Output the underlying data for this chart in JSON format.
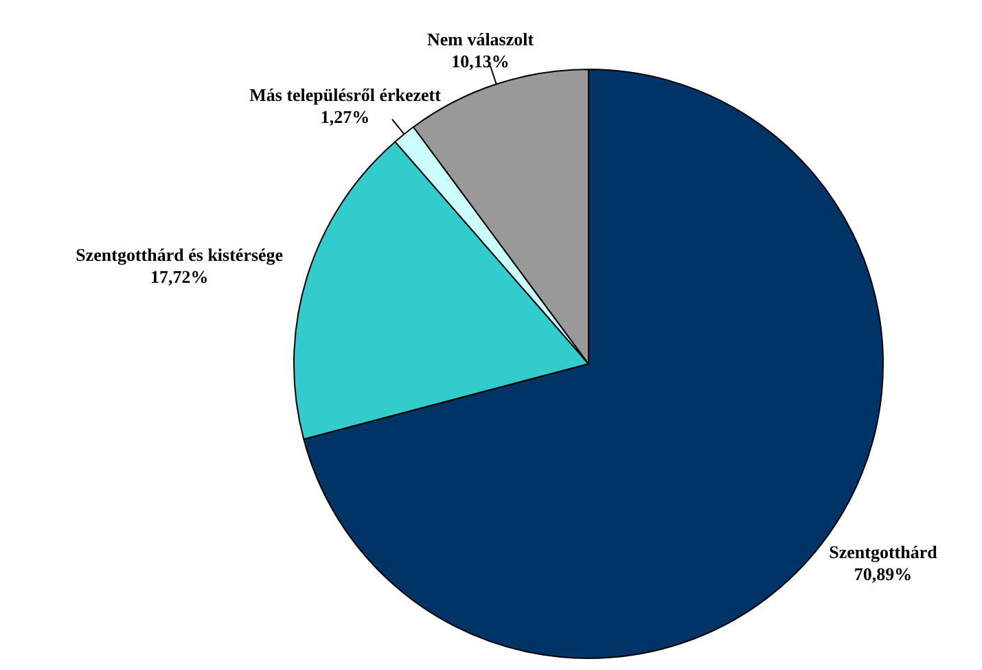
{
  "chart_data": {
    "type": "pie",
    "categories": [
      "Szentgotthárd",
      "Szentgotthárd és kistérsége",
      "Más településről érkezett",
      "Nem válaszolt"
    ],
    "values": [
      70.89,
      17.72,
      1.27,
      10.13
    ],
    "value_labels": [
      "70,89%",
      "17,72%",
      "1,27%",
      "10,13%"
    ],
    "colors": [
      "#003366",
      "#33cccc",
      "#ccffff",
      "#999999"
    ],
    "legend": false
  }
}
